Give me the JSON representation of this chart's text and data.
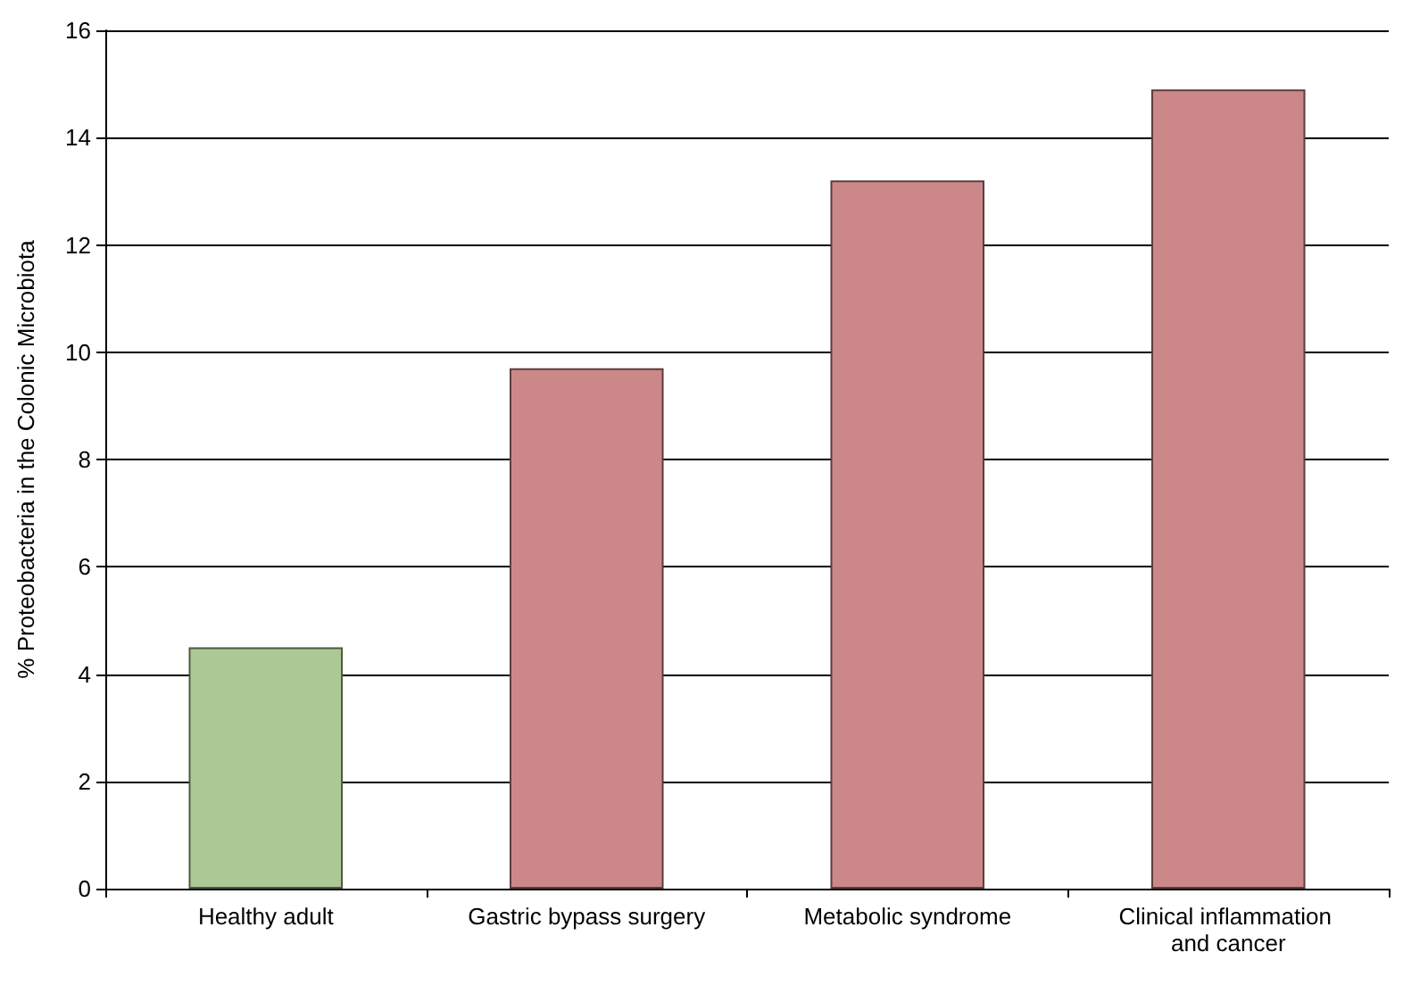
{
  "chart_data": {
    "type": "bar",
    "ylabel": "% Proteobacteria in the Colonic Microbiota",
    "categories": [
      "Healthy adult",
      "Gastric bypass surgery",
      "Metabolic syndrome",
      "Clinical inflammation and cancer"
    ],
    "values": [
      4.5,
      9.7,
      13.2,
      14.9
    ],
    "colors": [
      "#acc894",
      "#cc8888",
      "#cc8888",
      "#cc8888"
    ],
    "ylim": [
      0,
      16
    ],
    "yticks": [
      0,
      2,
      4,
      6,
      8,
      10,
      12,
      14,
      16
    ],
    "grid": "y"
  }
}
